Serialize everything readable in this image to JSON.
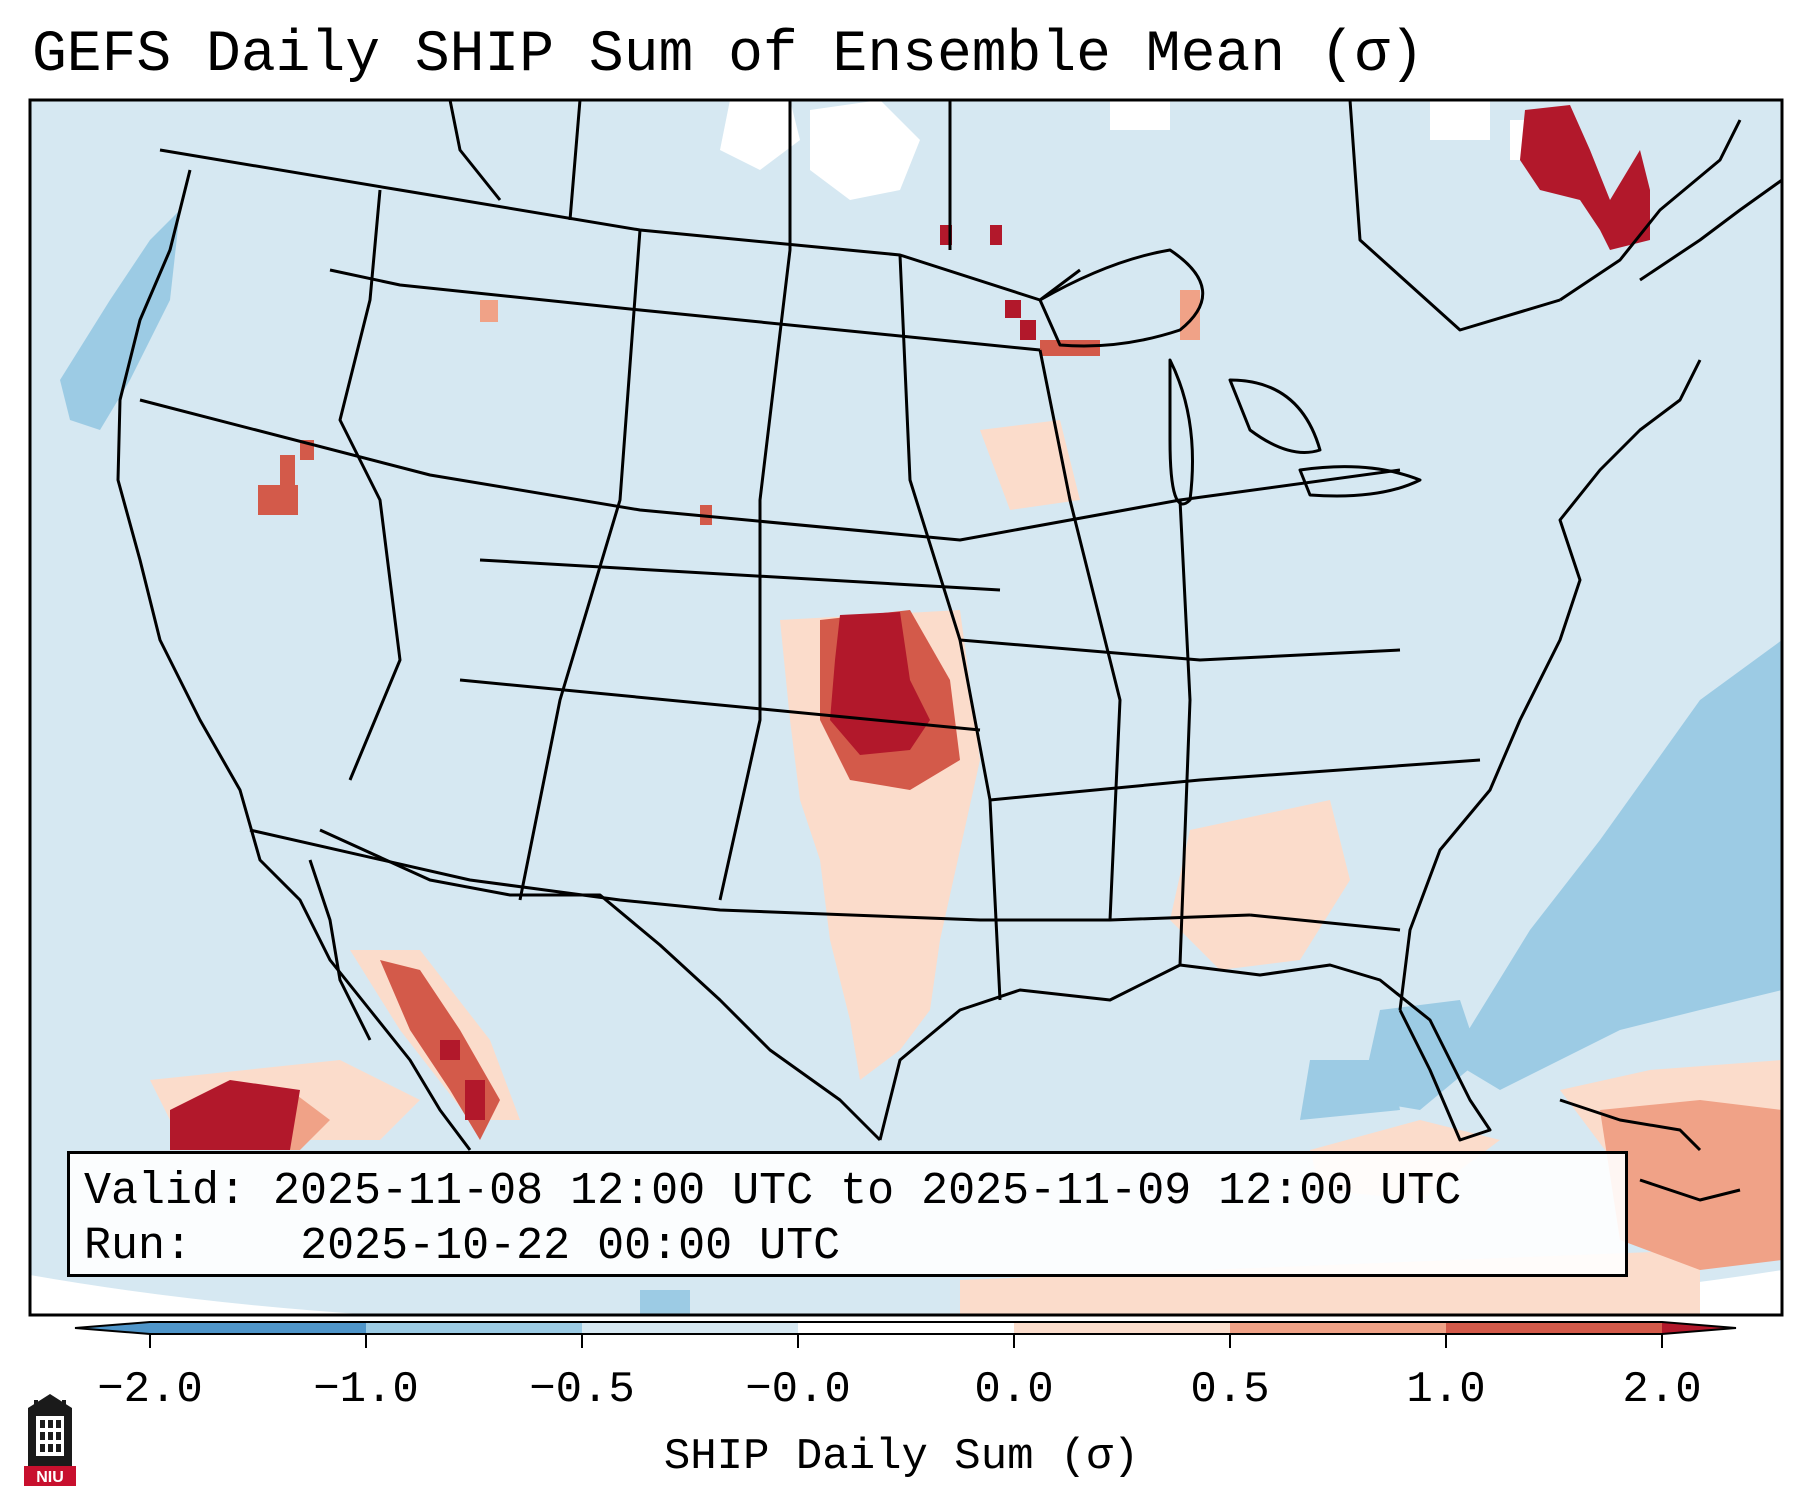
{
  "title": "GEFS Daily SHIP Sum of Ensemble Mean (σ)",
  "info": {
    "valid_label": "Valid:",
    "valid_value": "2025-11-08 12:00 UTC to 2025-11-09 12:00 UTC",
    "run_label": "Run:",
    "run_value": "2025-10-22 00:00 UTC"
  },
  "colorbar": {
    "label": "SHIP Daily Sum (σ)",
    "ticks": [
      "−2.0",
      "−1.0",
      "−0.5",
      "−0.0",
      "0.0",
      "0.5",
      "1.0",
      "2.0"
    ],
    "colors": [
      "#4f95c9",
      "#9ccbe4",
      "#d6e8f2",
      "#fbdccb",
      "#f0a287",
      "#d35a4a",
      "#b2182b"
    ]
  },
  "map": {
    "region": "Continental United States, Canada, Mexico",
    "background_color": "#d6e8f2",
    "hot_spots": [
      "Oklahoma / Kansas border",
      "Sierra Madre, Mexico",
      "Quebec, Canada",
      "Lake Superior shore"
    ]
  },
  "logo": {
    "text": "NIU"
  }
}
